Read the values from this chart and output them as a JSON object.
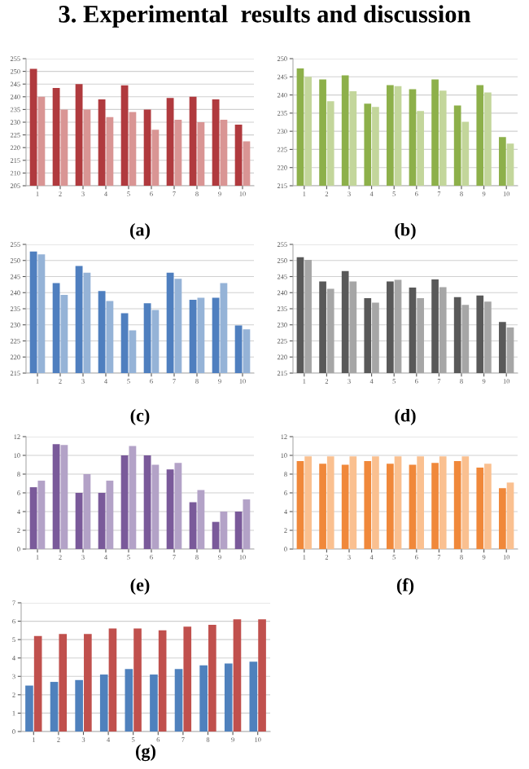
{
  "chart_data": [
    {
      "type": "bar",
      "title": "(a)",
      "annotations": [
        "3. Experimental  results and discussion"
      ],
      "categories": [
        "1",
        "2",
        "3",
        "4",
        "5",
        "6",
        "7",
        "8",
        "9",
        "10"
      ],
      "ylim": [
        205,
        255
      ],
      "yticks": [
        205,
        210,
        215,
        220,
        225,
        230,
        235,
        240,
        245,
        250,
        255
      ],
      "grid": "y",
      "series": [
        {
          "color": "#b03a3e",
          "values": [
            251,
            243.5,
            245,
            239,
            244.5,
            235,
            239.5,
            240,
            239,
            229
          ]
        },
        {
          "color": "#d99594",
          "values": [
            240,
            235,
            235,
            232,
            234,
            227,
            231,
            230,
            231,
            222.5
          ]
        }
      ]
    },
    {
      "type": "bar",
      "title": "(b)",
      "categories": [
        "1",
        "2",
        "3",
        "4",
        "5",
        "6",
        "7",
        "8",
        "9",
        "10"
      ],
      "ylim": [
        215,
        250
      ],
      "yticks": [
        215,
        220,
        225,
        230,
        235,
        240,
        245,
        250
      ],
      "grid": "y",
      "series": [
        {
          "color": "#8db04a",
          "values": [
            247.3,
            244.3,
            245.4,
            237.6,
            242.7,
            241.6,
            244.3,
            237.1,
            242.7,
            228.4
          ]
        },
        {
          "color": "#c3d69b",
          "values": [
            245,
            238.3,
            241,
            236.7,
            242.4,
            235.6,
            241.2,
            232.6,
            240.7,
            226.6
          ]
        }
      ]
    },
    {
      "type": "bar",
      "title": "(c)",
      "categories": [
        "1",
        "2",
        "3",
        "4",
        "5",
        "6",
        "7",
        "8",
        "9",
        "10"
      ],
      "ylim": [
        215,
        255
      ],
      "yticks": [
        215,
        220,
        225,
        230,
        235,
        240,
        245,
        250,
        255
      ],
      "grid": "y",
      "series": [
        {
          "color": "#4f7fbf",
          "values": [
            252.8,
            243,
            248.3,
            240.5,
            233.6,
            236.7,
            246.2,
            237.8,
            238.4,
            229.8
          ]
        },
        {
          "color": "#95b3d7",
          "values": [
            251.9,
            239.3,
            246.2,
            237.4,
            228.3,
            234.6,
            244.3,
            238.4,
            243,
            228.6
          ]
        }
      ]
    },
    {
      "type": "bar",
      "title": "(d)",
      "categories": [
        "1",
        "2",
        "3",
        "4",
        "5",
        "6",
        "7",
        "8",
        "9",
        "10"
      ],
      "ylim": [
        215,
        255
      ],
      "yticks": [
        215,
        220,
        225,
        230,
        235,
        240,
        245,
        250,
        255
      ],
      "grid": "y",
      "series": [
        {
          "color": "#595959",
          "values": [
            251,
            243.5,
            246.7,
            238.3,
            243.5,
            241.6,
            244.1,
            238.6,
            239.1,
            230.9
          ]
        },
        {
          "color": "#a6a6a6",
          "values": [
            250.2,
            241.2,
            243.5,
            236.9,
            244,
            238.3,
            241.7,
            236.2,
            237.2,
            229.2
          ]
        }
      ]
    },
    {
      "type": "bar",
      "title": "(e)",
      "categories": [
        "1",
        "2",
        "3",
        "4",
        "5",
        "6",
        "7",
        "8",
        "9",
        "10"
      ],
      "ylim": [
        0,
        12
      ],
      "yticks": [
        0,
        2,
        4,
        6,
        8,
        10,
        12
      ],
      "grid": "y",
      "series": [
        {
          "color": "#7a5a9a",
          "values": [
            6.6,
            11.2,
            6,
            6,
            10,
            10,
            8.5,
            5,
            2.9,
            4
          ]
        },
        {
          "color": "#b3a2c7",
          "values": [
            7.3,
            11.1,
            8,
            7.3,
            11,
            9,
            9.2,
            6.3,
            4,
            5.3
          ]
        }
      ]
    },
    {
      "type": "bar",
      "title": "(f)",
      "categories": [
        "1",
        "2",
        "3",
        "4",
        "5",
        "6",
        "7",
        "8",
        "9",
        "10"
      ],
      "ylim": [
        0,
        12
      ],
      "yticks": [
        0,
        2,
        4,
        6,
        8,
        10,
        12
      ],
      "grid": "y",
      "series": [
        {
          "color": "#f0883a",
          "values": [
            9.4,
            9.1,
            9,
            9.4,
            9.1,
            9,
            9.2,
            9.4,
            8.7,
            6.5
          ]
        },
        {
          "color": "#fac090",
          "values": [
            9.9,
            9.9,
            9.9,
            9.9,
            9.9,
            9.9,
            9.9,
            9.9,
            9.1,
            7.1
          ]
        }
      ]
    },
    {
      "type": "bar",
      "title": "(g)",
      "categories": [
        "1",
        "2",
        "3",
        "4",
        "5",
        "6",
        "7",
        "8",
        "9",
        "10"
      ],
      "ylim": [
        0,
        7
      ],
      "yticks": [
        0,
        1,
        2,
        3,
        4,
        5,
        6,
        7
      ],
      "grid": "y",
      "series": [
        {
          "color": "#4f81bd",
          "values": [
            2.5,
            2.7,
            2.8,
            3.1,
            3.4,
            3.1,
            3.4,
            3.6,
            3.7,
            3.8
          ]
        },
        {
          "color": "#c0504d",
          "values": [
            5.2,
            5.3,
            5.3,
            5.6,
            5.6,
            5.5,
            5.7,
            5.8,
            6.1,
            6.1
          ]
        }
      ]
    }
  ]
}
